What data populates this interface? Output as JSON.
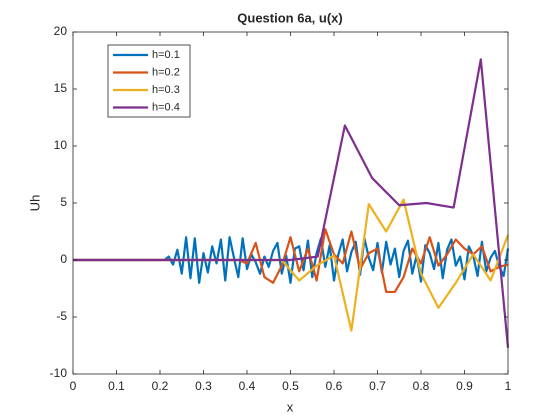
{
  "chart_data": {
    "type": "line",
    "title": "Question 6a, u(x)",
    "x_label": "x",
    "y_label": "Uh",
    "xlim": [
      0,
      1
    ],
    "xticks": [
      0,
      0.1,
      0.2,
      0.3,
      0.4,
      0.5,
      0.6,
      0.7,
      0.8,
      0.9,
      1
    ],
    "ylim": [
      -10,
      20
    ],
    "yticks": [
      -10,
      -5,
      0,
      5,
      10,
      15,
      20
    ],
    "grid": false,
    "legend": "northwest",
    "series": [
      {
        "name": "h=0.1",
        "color": "#0072BD",
        "x": [
          0,
          0.01,
          0.02,
          0.03,
          0.04,
          0.05,
          0.06,
          0.07,
          0.08,
          0.09,
          0.1,
          0.11,
          0.12,
          0.13,
          0.14,
          0.15,
          0.16,
          0.17,
          0.18,
          0.19,
          0.2,
          0.21,
          0.22,
          0.23,
          0.24,
          0.25,
          0.26,
          0.27,
          0.28,
          0.29,
          0.3,
          0.31,
          0.32,
          0.33,
          0.34,
          0.35,
          0.36,
          0.37,
          0.38,
          0.39,
          0.4,
          0.41,
          0.42,
          0.43,
          0.44,
          0.45,
          0.46,
          0.47,
          0.48,
          0.49,
          0.5,
          0.51,
          0.52,
          0.53,
          0.54,
          0.55,
          0.56,
          0.57,
          0.58,
          0.59,
          0.6,
          0.61,
          0.62,
          0.63,
          0.64,
          0.65,
          0.66,
          0.67,
          0.68,
          0.69,
          0.7,
          0.71,
          0.72,
          0.73,
          0.74,
          0.75,
          0.76,
          0.77,
          0.78,
          0.79,
          0.8,
          0.81,
          0.82,
          0.83,
          0.84,
          0.85,
          0.86,
          0.87,
          0.88,
          0.89,
          0.9,
          0.91,
          0.92,
          0.93,
          0.94,
          0.95,
          0.96,
          0.97,
          0.98,
          0.99,
          1
        ],
        "values": [
          0,
          0,
          0,
          0,
          0,
          0,
          0,
          0,
          0,
          0,
          0,
          0,
          0,
          0,
          0,
          0,
          0,
          0,
          0,
          0,
          0,
          0,
          0.3,
          -0.4,
          0.9,
          -1.2,
          2.0,
          -1.6,
          1.9,
          -2.0,
          0.6,
          -1.1,
          1.2,
          -0.3,
          1.8,
          -1.8,
          2.0,
          0.2,
          -1.5,
          1.9,
          -0.8,
          0.5,
          -0.2,
          -1.2,
          0.3,
          -0.6,
          0.8,
          1.5,
          -1.2,
          0.4,
          -2.0,
          1.0,
          1.2,
          -0.9,
          1.7,
          -1.5,
          0.6,
          1.9,
          -0.6,
          1.3,
          -1.8,
          0.5,
          1.8,
          -1.0,
          0.7,
          1.6,
          -1.3,
          1.9,
          0.2,
          -0.9,
          1.5,
          -1.1,
          1.6,
          -0.4,
          1.0,
          -1.5,
          0.8,
          1.7,
          -1.2,
          0.4,
          -1.9,
          1.3,
          0.6,
          -0.8,
          1.5,
          -1.6,
          0.9,
          1.8,
          -0.5,
          0.3,
          -1.7,
          1.2,
          0.4,
          -1.4,
          1.6,
          -1.0,
          0.2,
          0.8,
          -0.6,
          -1.4,
          1.0
        ]
      },
      {
        "name": "h=0.2",
        "color": "#D95319",
        "x": [
          0,
          0.02,
          0.04,
          0.06,
          0.08,
          0.1,
          0.12,
          0.14,
          0.16,
          0.18,
          0.2,
          0.22,
          0.24,
          0.26,
          0.28,
          0.3,
          0.32,
          0.34,
          0.36,
          0.38,
          0.4,
          0.42,
          0.44,
          0.46,
          0.48,
          0.5,
          0.52,
          0.54,
          0.56,
          0.58,
          0.6,
          0.62,
          0.64,
          0.66,
          0.68,
          0.7,
          0.72,
          0.74,
          0.76,
          0.78,
          0.8,
          0.82,
          0.84,
          0.86,
          0.88,
          0.9,
          0.92,
          0.94,
          0.96,
          0.98,
          1
        ],
        "values": [
          0,
          0,
          0,
          0,
          0,
          0,
          0,
          0,
          0,
          0,
          0,
          0,
          0,
          0,
          0,
          0,
          0,
          0,
          0,
          0,
          -0.3,
          1.5,
          -1.5,
          -2.0,
          -0.5,
          2.0,
          -1.0,
          1.0,
          -1.8,
          2.7,
          0.5,
          -0.3,
          2.5,
          -0.8,
          0.6,
          1.0,
          -2.8,
          -2.8,
          -1.5,
          1.0,
          -0.3,
          2.0,
          -0.5,
          0.5,
          1.8,
          1.0,
          0.5,
          1.2,
          -1.0,
          -0.6,
          -0.4
        ]
      },
      {
        "name": "h=0.3",
        "color": "#EDB120",
        "x": [
          0,
          0.04,
          0.08,
          0.12,
          0.16,
          0.2,
          0.24,
          0.28,
          0.32,
          0.36,
          0.4,
          0.44,
          0.48,
          0.52,
          0.56,
          0.6,
          0.64,
          0.68,
          0.72,
          0.76,
          0.8,
          0.84,
          0.88,
          0.92,
          0.96,
          1
        ],
        "values": [
          0,
          0,
          0,
          0,
          0,
          0,
          0,
          0,
          0,
          0,
          0,
          0,
          0,
          -1.8,
          -0.5,
          0.4,
          -6.2,
          4.9,
          2.5,
          5.3,
          -1.2,
          -4.2,
          -2.0,
          0.5,
          -1.8,
          2.2
        ]
      },
      {
        "name": "h=0.4",
        "color": "#7E2F8E",
        "x": [
          0,
          0.0625,
          0.125,
          0.1875,
          0.25,
          0.3125,
          0.375,
          0.4375,
          0.5,
          0.5625,
          0.625,
          0.6875,
          0.75,
          0.8125,
          0.875,
          0.9375,
          1
        ],
        "values": [
          0,
          0,
          0,
          0,
          0,
          0,
          0,
          0,
          0,
          0.3,
          11.8,
          7.2,
          4.8,
          5.0,
          4.6,
          17.6,
          -7.7
        ]
      }
    ]
  }
}
